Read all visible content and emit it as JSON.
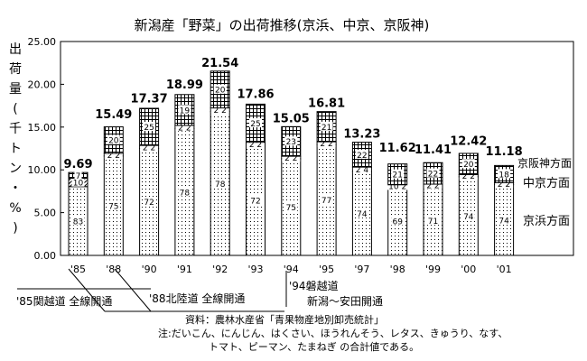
{
  "chart_data": {
    "type": "bar",
    "title": "新潟産「野菜」の出荷推移(京浜、中京、京阪神)",
    "ylabel": "出荷量(千トン・%)",
    "ylim": [
      0,
      25
    ],
    "yticks": [
      "0.00",
      "5.00",
      "10.00",
      "15.00",
      "20.00",
      "25.00"
    ],
    "categories": [
      "'85",
      "'88",
      "'90",
      "'91",
      "'92",
      "'93",
      "'94",
      "'95",
      "'97",
      "'98",
      "'99",
      "'00",
      "'01"
    ],
    "totals": [
      9.69,
      15.49,
      17.37,
      18.99,
      21.54,
      17.86,
      15.05,
      16.81,
      13.23,
      11.62,
      11.41,
      12.42,
      11.18
    ],
    "total_labels": [
      "9.69",
      "15.49",
      "17.37",
      "18.99",
      "21.54",
      "17.86",
      "15.05",
      "16.81",
      "13.23",
      "11.62",
      "11.41",
      "12.42",
      "11.18"
    ],
    "series": [
      {
        "name": "京浜方面",
        "percent": [
          83,
          75,
          72,
          78,
          78,
          72,
          75,
          77,
          74,
          69,
          71,
          74,
          74
        ]
      },
      {
        "name": "中京方面",
        "percent": [
          10,
          2,
          2,
          2,
          2,
          2,
          2,
          2,
          4,
          2,
          2,
          2,
          2
        ]
      },
      {
        "name": "京阪神方面",
        "percent": [
          7,
          20,
          25,
          19,
          20,
          25,
          23,
          21,
          22,
          21,
          22,
          20,
          18
        ]
      }
    ],
    "segment_labels": [
      [
        "83",
        "10",
        "7"
      ],
      [
        "75",
        "2 2",
        "20"
      ],
      [
        "72",
        "2 2",
        "25"
      ],
      [
        "78",
        "2 2",
        "19"
      ],
      [
        "78",
        "2 2",
        "20"
      ],
      [
        "72",
        "2 2",
        "25"
      ],
      [
        "75",
        "2 2",
        "23"
      ],
      [
        "77",
        "2 2",
        "21"
      ],
      [
        "74",
        "2 4",
        "22"
      ],
      [
        "69",
        "10 2",
        "21"
      ],
      [
        "71",
        "2 2",
        "22"
      ],
      [
        "74",
        "2 2",
        "20"
      ],
      [
        "74",
        "2 2",
        "18"
      ]
    ],
    "annotations": [
      {
        "text": "'85関越道  全線開通",
        "category": "'85"
      },
      {
        "text": "'88北陸道  全線開通",
        "category": "'88"
      },
      {
        "text": "'94磐越道",
        "category": "'94"
      },
      {
        "text": "新潟～安田開通",
        "category": "'94"
      }
    ],
    "grid": false,
    "legend_position": "right"
  },
  "footnotes": {
    "source": "資料：農林水産省「青果物産地別卸売統計」",
    "note1": "注:だいこん、にんじん、はくさい、ほうれんそう、レタス、きゅうり、なす、",
    "note2": "トマト、ピーマン、たまねぎ の合計値である。"
  }
}
